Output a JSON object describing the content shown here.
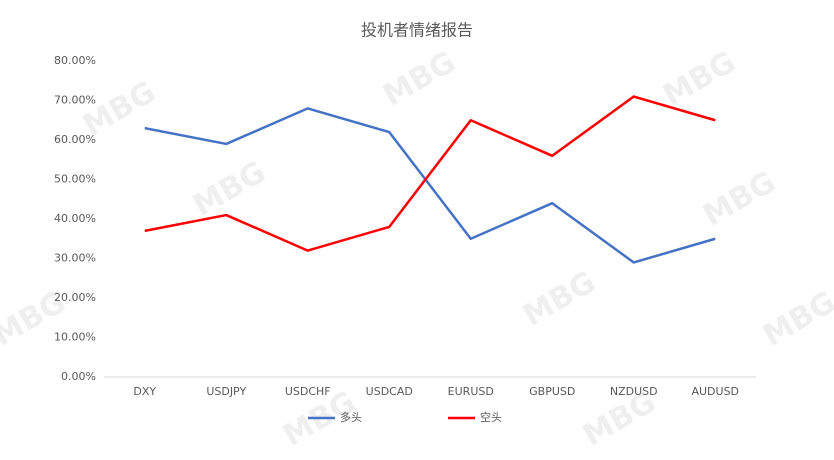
{
  "chart_data": {
    "type": "line",
    "title": "投机者情绪报告",
    "watermark": "MBG",
    "categories": [
      "DXY",
      "USDJPY",
      "USDCHF",
      "USDCAD",
      "EURUSD",
      "GBPUSD",
      "NZDUSD",
      "AUDUSD"
    ],
    "series": [
      {
        "name": "多头",
        "color": "#4472c4",
        "values": [
          63,
          59,
          68,
          62,
          35,
          44,
          29,
          35
        ]
      },
      {
        "name": "空头",
        "color": "#ff0000",
        "values": [
          37,
          41,
          32,
          38,
          65,
          56,
          71,
          65
        ]
      }
    ],
    "ylim": [
      0,
      80
    ],
    "yticks": [
      {
        "value": 0,
        "label": "0.00%"
      },
      {
        "value": 10,
        "label": "10.00%"
      },
      {
        "value": 20,
        "label": "20.00%"
      },
      {
        "value": 30,
        "label": "30.00%"
      },
      {
        "value": 40,
        "label": "40.00%"
      },
      {
        "value": 50,
        "label": "50.00%"
      },
      {
        "value": 60,
        "label": "60.00%"
      },
      {
        "value": 70,
        "label": "70.00%"
      },
      {
        "value": 80,
        "label": "80.00%"
      }
    ],
    "grid": false,
    "legend": "bottom"
  }
}
